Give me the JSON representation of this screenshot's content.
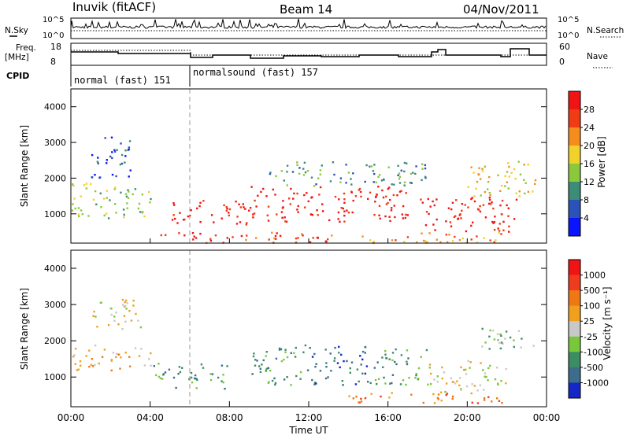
{
  "header": {
    "station": "Inuvik (fitACF)",
    "beam": "Beam 14",
    "date": "04/Nov/2011"
  },
  "strip_panels": {
    "nsky": {
      "label": "N.Sky",
      "tick_top": "10^5",
      "tick_bottom": "10^0"
    },
    "nsearch": {
      "label": "N.Search",
      "tick_top": "10^5",
      "tick_bottom": "10^0"
    },
    "freq": {
      "label_line1": "Freq.",
      "label_line2": "[MHz]",
      "tick_top": "18",
      "tick_bottom": "8"
    },
    "nave": {
      "label": "Nave",
      "tick_top": "60",
      "tick_bottom": "0"
    },
    "cpid": {
      "label": "CPID",
      "modes": [
        {
          "name": "normal (fast) 151",
          "start_hour": 0,
          "end_hour": 6
        },
        {
          "name": "normalsound (fast) 157",
          "start_hour": 6,
          "end_hour": 24
        }
      ]
    }
  },
  "chart_data": [
    {
      "type": "heatmap",
      "panel": "power",
      "ylabel": "Slant Range [km]",
      "xlabel": "",
      "ylim": [
        180,
        4500
      ],
      "xlim": [
        0,
        24
      ],
      "y_ticks": [
        "1000",
        "2000",
        "3000",
        "4000"
      ],
      "colorbar_label": "Power [dB]",
      "colorbar_ticks": [
        "4",
        "8",
        "12",
        "16",
        "20",
        "24",
        "28"
      ],
      "colorbar_colors": [
        "#0a14ff",
        "#2a52b8",
        "#3c8c78",
        "#8cc83c",
        "#f0d22a",
        "#f58c1e",
        "#f03c14",
        "#f01414"
      ],
      "echo_regions": [
        {
          "t0": 0.0,
          "t1": 4.0,
          "r0": 900,
          "r1": 1900,
          "level": 3
        },
        {
          "t0": 1.0,
          "t1": 3.0,
          "r0": 2000,
          "r1": 3200,
          "level": 1
        },
        {
          "t0": 4.0,
          "t1": 6.5,
          "r0": 300,
          "r1": 500,
          "level": 7
        },
        {
          "t0": 5.0,
          "t1": 9.0,
          "r0": 700,
          "r1": 1400,
          "level": 7
        },
        {
          "t0": 6.0,
          "t1": 14.0,
          "r0": 200,
          "r1": 500,
          "level": 6
        },
        {
          "t0": 9.0,
          "t1": 17.0,
          "r0": 800,
          "r1": 1800,
          "level": 7
        },
        {
          "t0": 10.0,
          "t1": 18.0,
          "r0": 1800,
          "r1": 2500,
          "level": 2
        },
        {
          "t0": 17.5,
          "t1": 22.5,
          "r0": 500,
          "r1": 1500,
          "level": 7
        },
        {
          "t0": 14.0,
          "t1": 22.0,
          "r0": 200,
          "r1": 500,
          "level": 5
        },
        {
          "t0": 20.0,
          "t1": 23.5,
          "r0": 1500,
          "r1": 2500,
          "level": 4
        }
      ]
    },
    {
      "type": "heatmap",
      "panel": "velocity",
      "ylabel": "Slant Range [km]",
      "xlabel": "Time UT",
      "ylim": [
        180,
        4500
      ],
      "xlim": [
        0,
        24
      ],
      "y_ticks": [
        "1000",
        "2000",
        "3000",
        "4000"
      ],
      "x_ticks": [
        "00:00",
        "04:00",
        "08:00",
        "12:00",
        "16:00",
        "20:00",
        "00:00"
      ],
      "colorbar_label": "Velocity [m s⁻¹]",
      "colorbar_ticks": [
        "1000",
        "500",
        "100",
        "25",
        "-25",
        "-100",
        "-500",
        "-1000"
      ],
      "colorbar_colors": [
        "#1428c8",
        "#3c6e8c",
        "#3c8c64",
        "#78c83c",
        "#c8c8c8",
        "#f0a01e",
        "#f07814",
        "#f03c1e",
        "#f01414"
      ],
      "echo_regions": [
        {
          "t0": 0.0,
          "t1": 4.0,
          "r0": 1200,
          "r1": 1900,
          "level": 5
        },
        {
          "t0": 1.0,
          "t1": 3.5,
          "r0": 2300,
          "r1": 3200,
          "level": 4
        },
        {
          "t0": 4.0,
          "t1": 8.0,
          "r0": 700,
          "r1": 1400,
          "level": 2
        },
        {
          "t0": 9.0,
          "t1": 12.0,
          "r0": 800,
          "r1": 1900,
          "level": 2
        },
        {
          "t0": 12.0,
          "t1": 15.0,
          "r0": 800,
          "r1": 1900,
          "level": 1
        },
        {
          "t0": 15.0,
          "t1": 18.0,
          "r0": 800,
          "r1": 1800,
          "level": 2
        },
        {
          "t0": 18.0,
          "t1": 22.0,
          "r0": 600,
          "r1": 1500,
          "level": 4
        },
        {
          "t0": 14.0,
          "t1": 22.0,
          "r0": 300,
          "r1": 600,
          "level": 6
        },
        {
          "t0": 20.5,
          "t1": 23.5,
          "r0": 1800,
          "r1": 2400,
          "level": 3
        }
      ]
    }
  ]
}
